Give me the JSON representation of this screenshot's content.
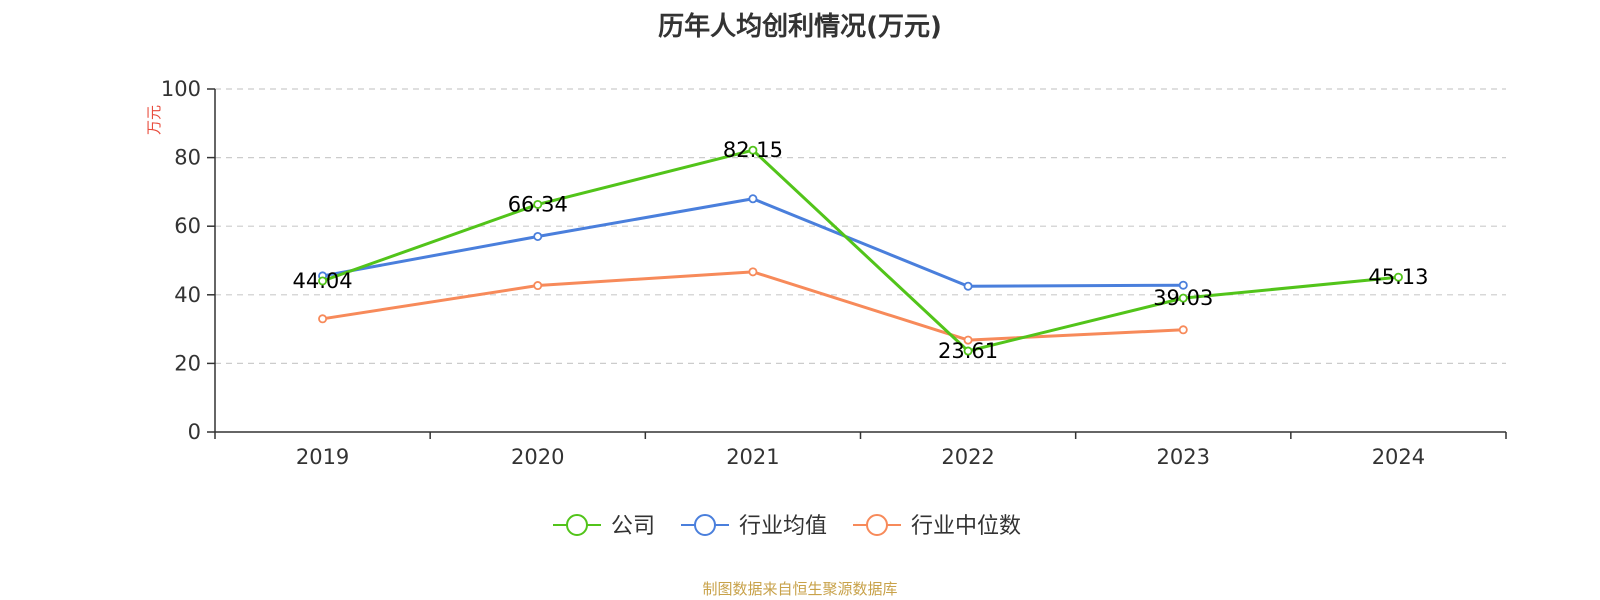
{
  "chart_data": {
    "type": "line",
    "title": "历年人均创利情况(万元)",
    "ylabel": "万元",
    "categories": [
      "2019",
      "2020",
      "2021",
      "2022",
      "2023",
      "2024"
    ],
    "ylim": [
      0,
      100
    ],
    "yticks": [
      0,
      20,
      40,
      60,
      80,
      100
    ],
    "grid": true,
    "legend_position": "bottom",
    "series": [
      {
        "name": "公司",
        "color": "#52c41a",
        "values": [
          44.04,
          66.34,
          82.15,
          23.61,
          39.03,
          45.13
        ],
        "labels": [
          "44.04",
          "66.34",
          "82.15",
          "23.61",
          "39.03",
          "45.13"
        ]
      },
      {
        "name": "行业均值",
        "color": "#4a7fdc",
        "values": [
          45.5,
          57.0,
          68.0,
          42.5,
          42.8,
          null
        ]
      },
      {
        "name": "行业中位数",
        "color": "#f78a5a",
        "values": [
          33.0,
          42.7,
          46.7,
          26.8,
          29.8,
          null
        ]
      }
    ]
  },
  "source": "制图数据来自恒生聚源数据库"
}
